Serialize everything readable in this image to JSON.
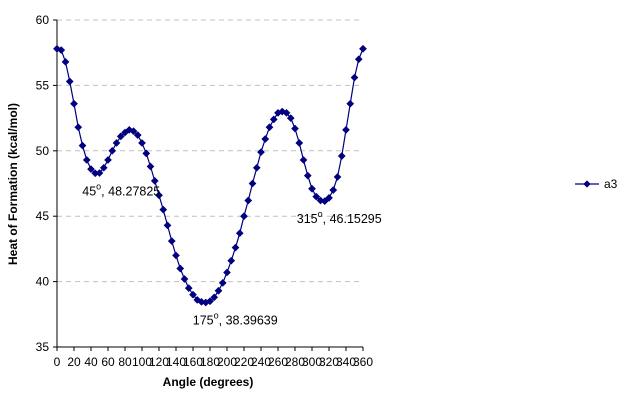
{
  "chart_data": {
    "type": "line",
    "title": "",
    "xlabel": "Angle (degrees)",
    "ylabel": "Heat of Formation (kcal/mol)",
    "xlim": [
      0,
      360
    ],
    "ylim": [
      35,
      60
    ],
    "xticks": [
      "0",
      "20",
      "40",
      "60",
      "80",
      "100",
      "120",
      "140",
      "160",
      "180",
      "200",
      "220",
      "240",
      "260",
      "280",
      "300",
      "320",
      "340",
      "360"
    ],
    "yticks": [
      "35",
      "40",
      "45",
      "50",
      "55",
      "60"
    ],
    "grid": "horizontal-dashed",
    "legend_position": "right",
    "colors": {
      "series": "#000080",
      "grid": "#c0c0c0"
    },
    "series": [
      {
        "name": "a3",
        "x": [
          0,
          5,
          10,
          15,
          20,
          25,
          30,
          35,
          40,
          45,
          50,
          55,
          60,
          65,
          70,
          75,
          80,
          85,
          90,
          95,
          100,
          105,
          110,
          115,
          120,
          125,
          130,
          135,
          140,
          145,
          150,
          155,
          160,
          165,
          170,
          175,
          180,
          185,
          190,
          195,
          200,
          205,
          210,
          215,
          220,
          225,
          230,
          235,
          240,
          245,
          250,
          255,
          260,
          265,
          270,
          275,
          280,
          285,
          290,
          295,
          300,
          305,
          310,
          315,
          320,
          325,
          330,
          335,
          340,
          345,
          350,
          355,
          360
        ],
        "y": [
          57.8,
          57.7,
          56.8,
          55.3,
          53.6,
          51.8,
          50.4,
          49.3,
          48.6,
          48.28,
          48.3,
          48.7,
          49.3,
          50.0,
          50.6,
          51.1,
          51.4,
          51.6,
          51.5,
          51.2,
          50.6,
          49.8,
          48.8,
          47.7,
          46.6,
          45.5,
          44.3,
          43.1,
          42.0,
          41.0,
          40.2,
          39.5,
          39.0,
          38.6,
          38.45,
          38.4,
          38.5,
          38.8,
          39.3,
          39.9,
          40.7,
          41.6,
          42.6,
          43.7,
          45.0,
          46.2,
          47.5,
          48.7,
          49.9,
          50.9,
          51.8,
          52.4,
          52.9,
          53.0,
          52.9,
          52.5,
          51.7,
          50.6,
          49.3,
          48.1,
          47.1,
          46.5,
          46.2,
          46.15,
          46.4,
          47.0,
          48.0,
          49.6,
          51.6,
          53.6,
          55.6,
          57.0,
          57.8
        ]
      }
    ],
    "annotations": [
      {
        "label": "45",
        "suffix": ", 48.27825",
        "degree": "o",
        "x": 45,
        "y": 48.27825
      },
      {
        "label": "175",
        "suffix": ", 38.39639",
        "degree": "o",
        "x": 175,
        "y": 38.39639
      },
      {
        "label": "315",
        "suffix": ", 46.15295",
        "degree": "o",
        "x": 315,
        "y": 46.15295
      }
    ]
  }
}
